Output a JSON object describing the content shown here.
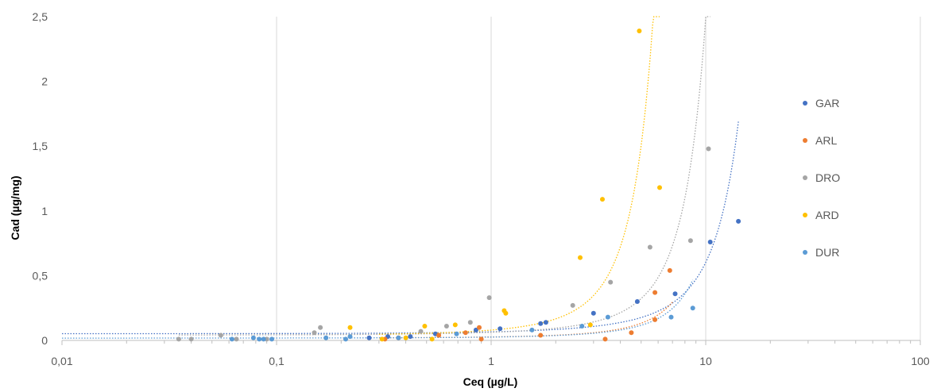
{
  "chart_data": {
    "type": "scatter",
    "title": "",
    "xlabel": "Ceq (µg/L)",
    "ylabel": "Cad (µg/mg)",
    "x_scale": "log",
    "xlim": [
      0.01,
      100
    ],
    "ylim": [
      0,
      2.5
    ],
    "x_ticks": [
      0.01,
      0.1,
      1,
      10,
      100
    ],
    "x_tick_labels": [
      "0,01",
      "0,1",
      "1",
      "10",
      "100"
    ],
    "y_ticks": [
      0,
      0.5,
      1,
      1.5,
      2,
      2.5
    ],
    "y_tick_labels": [
      "0",
      "0,5",
      "1",
      "1,5",
      "2",
      "2,5"
    ],
    "grid": "vertical major",
    "legend_position": "right",
    "series": [
      {
        "name": "GAR",
        "color": "#4472C4",
        "points": [
          [
            0.27,
            0.02
          ],
          [
            0.33,
            0.03
          ],
          [
            0.42,
            0.03
          ],
          [
            0.55,
            0.05
          ],
          [
            0.85,
            0.08
          ],
          [
            1.1,
            0.09
          ],
          [
            1.7,
            0.13
          ],
          [
            1.8,
            0.14
          ],
          [
            3.0,
            0.21
          ],
          [
            4.8,
            0.3
          ],
          [
            7.2,
            0.36
          ],
          [
            10.5,
            0.76
          ],
          [
            14.2,
            0.92
          ]
        ],
        "trend_range": [
          0.01,
          14.2
        ]
      },
      {
        "name": "ARL",
        "color": "#ED7D31",
        "points": [
          [
            0.32,
            0.01
          ],
          [
            0.37,
            0.02
          ],
          [
            0.57,
            0.04
          ],
          [
            0.76,
            0.06
          ],
          [
            0.88,
            0.1
          ],
          [
            0.9,
            0.01
          ],
          [
            1.7,
            0.04
          ],
          [
            3.4,
            0.01
          ],
          [
            4.5,
            0.06
          ],
          [
            5.8,
            0.37
          ],
          [
            5.8,
            0.16
          ],
          [
            6.8,
            0.54
          ]
        ],
        "trend_range": [
          0.3,
          7.0
        ]
      },
      {
        "name": "DRO",
        "color": "#A5A5A5",
        "points": [
          [
            0.035,
            0.01
          ],
          [
            0.04,
            0.01
          ],
          [
            0.055,
            0.04
          ],
          [
            0.065,
            0.01
          ],
          [
            0.09,
            0.01
          ],
          [
            0.15,
            0.06
          ],
          [
            0.16,
            0.1
          ],
          [
            0.47,
            0.07
          ],
          [
            0.62,
            0.11
          ],
          [
            0.8,
            0.14
          ],
          [
            0.98,
            0.33
          ],
          [
            2.4,
            0.27
          ],
          [
            3.6,
            0.45
          ],
          [
            5.5,
            0.72
          ],
          [
            8.5,
            0.77
          ],
          [
            10.3,
            1.48
          ]
        ],
        "trend_range": [
          0.035,
          10.5
        ]
      },
      {
        "name": "ARD",
        "color": "#FFC000",
        "points": [
          [
            0.22,
            0.1
          ],
          [
            0.31,
            0.01
          ],
          [
            0.4,
            0.02
          ],
          [
            0.49,
            0.11
          ],
          [
            0.53,
            0.01
          ],
          [
            0.68,
            0.12
          ],
          [
            1.15,
            0.23
          ],
          [
            1.17,
            0.21
          ],
          [
            2.6,
            0.64
          ],
          [
            2.9,
            0.12
          ],
          [
            3.3,
            1.09
          ],
          [
            4.9,
            2.39
          ],
          [
            6.1,
            1.18
          ]
        ],
        "trend_range": [
          0.3,
          6.1
        ]
      },
      {
        "name": "DUR",
        "color": "#5B9BD5",
        "points": [
          [
            0.062,
            0.01
          ],
          [
            0.078,
            0.02
          ],
          [
            0.083,
            0.01
          ],
          [
            0.087,
            0.01
          ],
          [
            0.095,
            0.01
          ],
          [
            0.17,
            0.02
          ],
          [
            0.21,
            0.01
          ],
          [
            0.22,
            0.03
          ],
          [
            0.37,
            0.02
          ],
          [
            0.69,
            0.05
          ],
          [
            1.55,
            0.08
          ],
          [
            2.65,
            0.11
          ],
          [
            3.5,
            0.18
          ],
          [
            6.9,
            0.18
          ],
          [
            8.7,
            0.25
          ]
        ],
        "trend_range": [
          0.01,
          8.7
        ]
      }
    ]
  }
}
